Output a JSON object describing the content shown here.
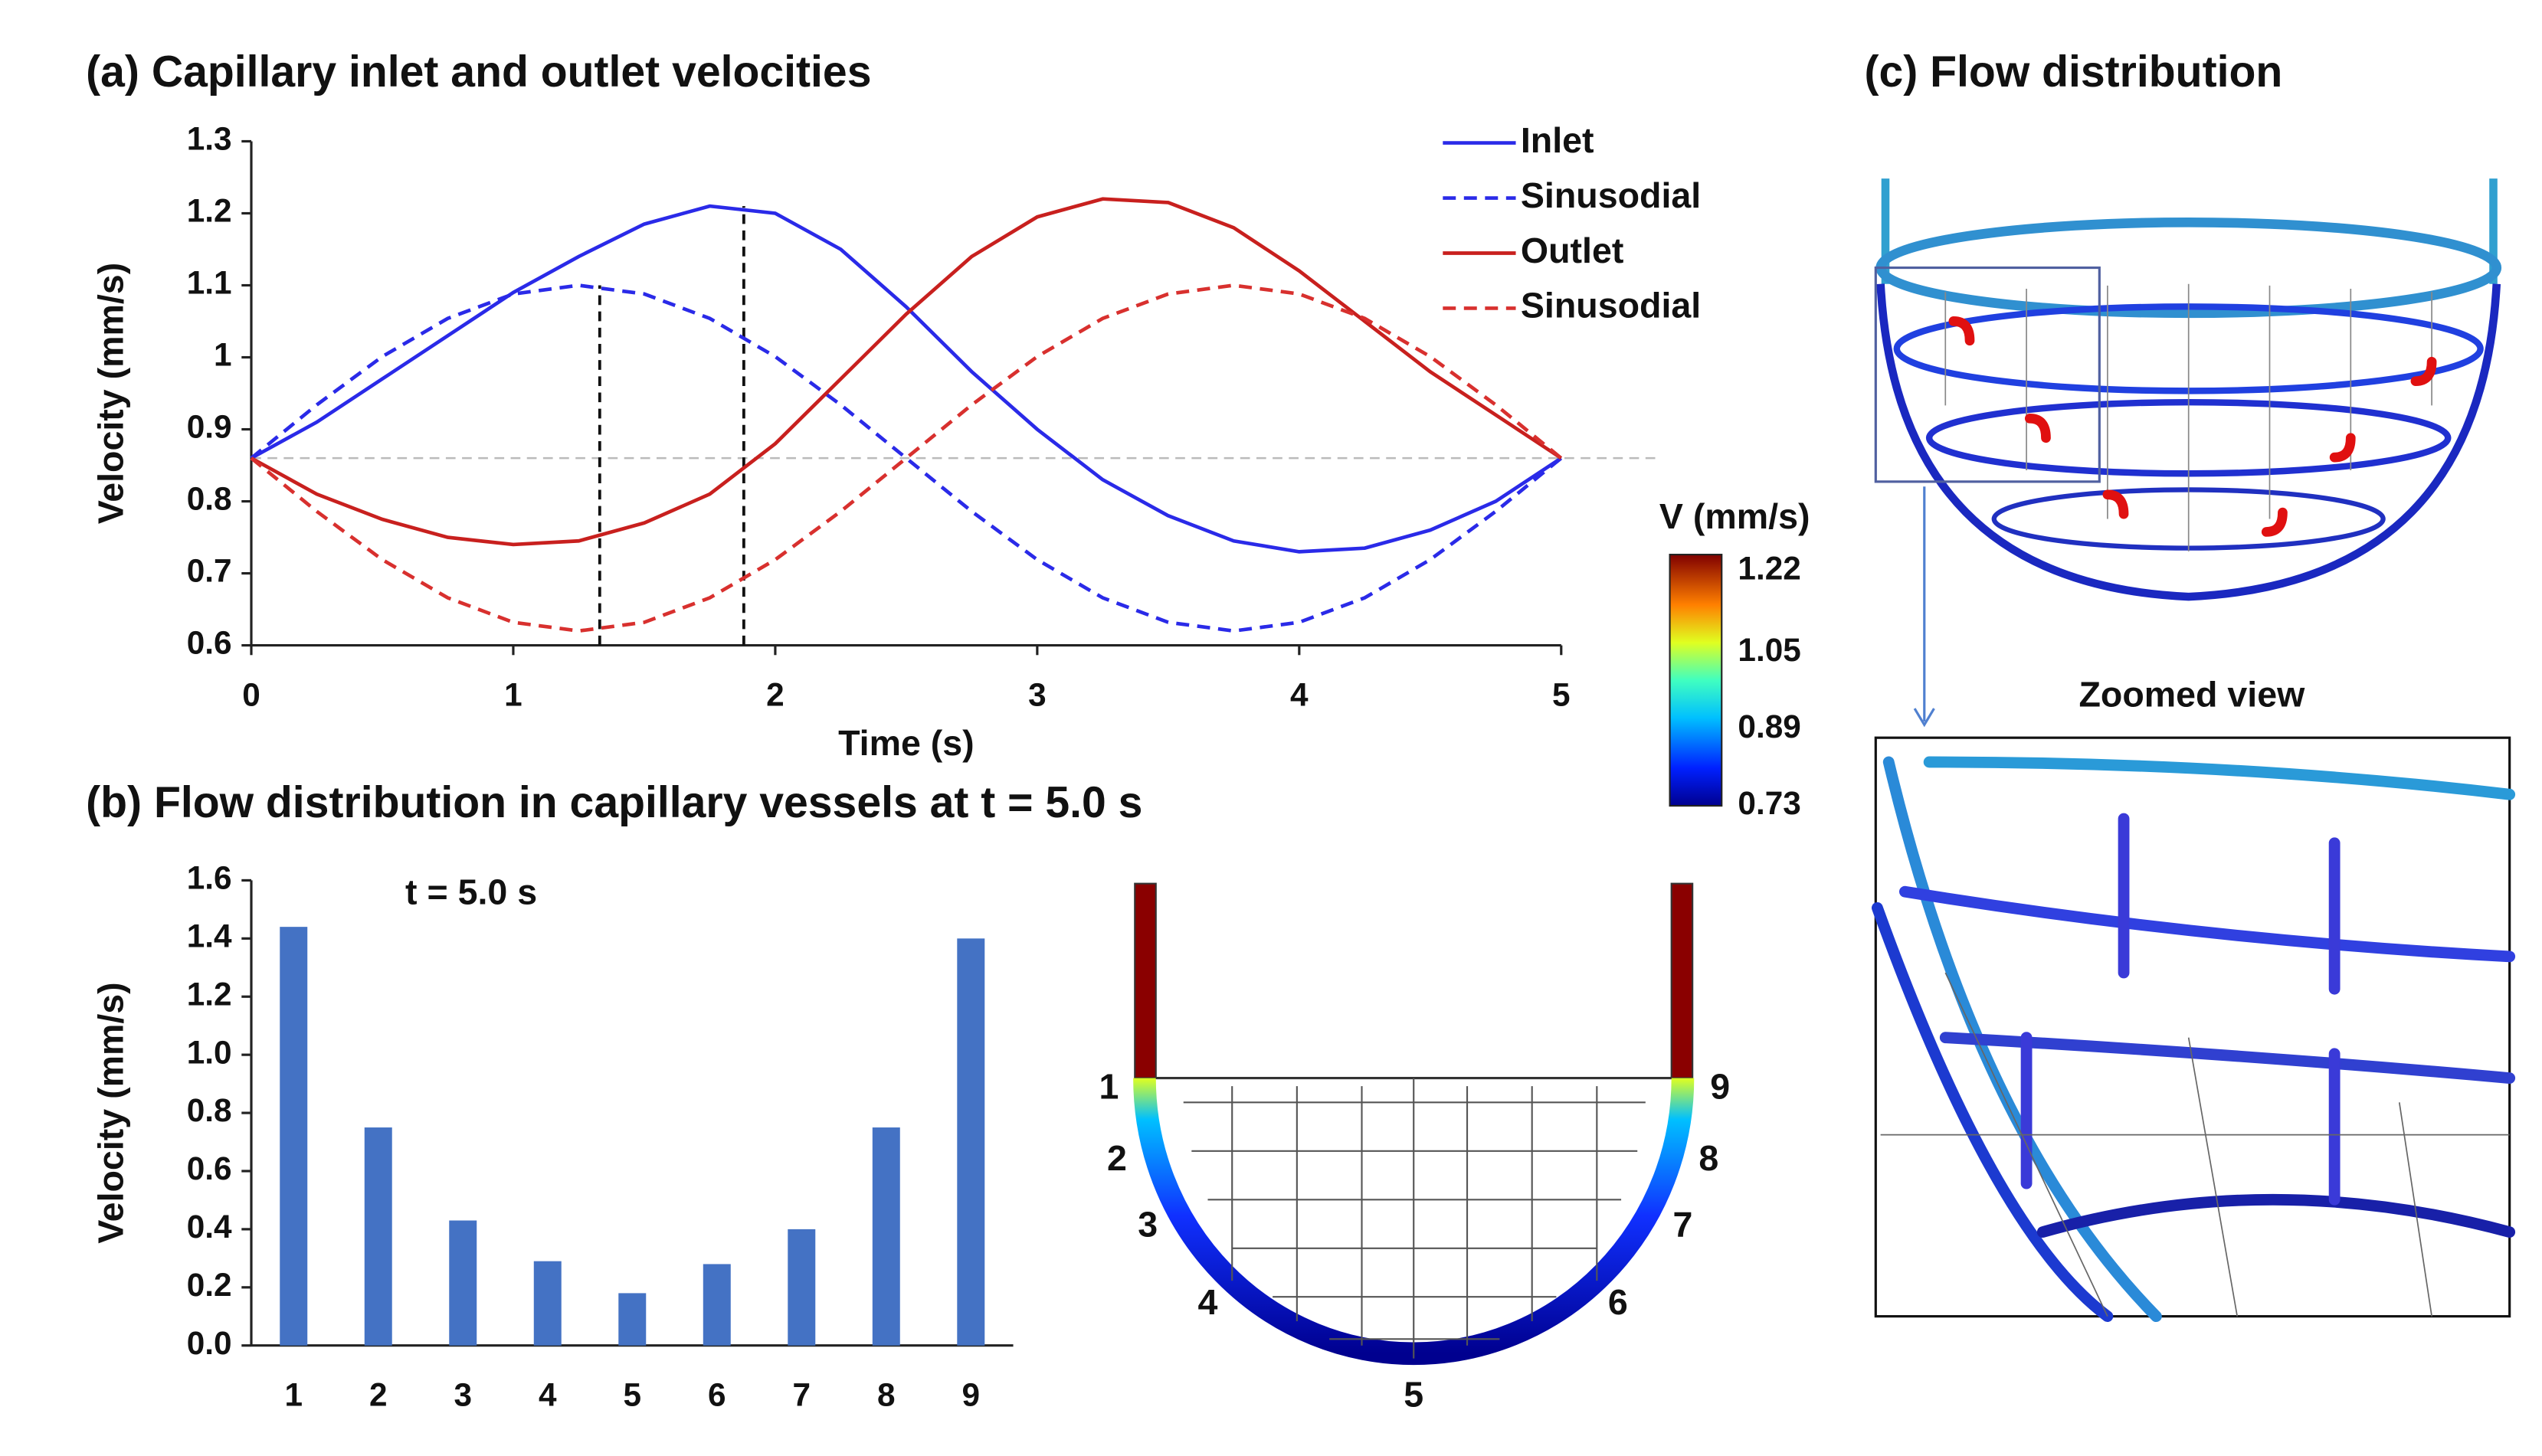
{
  "chart_data": [
    {
      "type": "line",
      "title": "(a) Capillary inlet and outlet velocities",
      "xlabel": "Time (s)",
      "ylabel": "Velocity (mm/s)",
      "x": [
        0,
        0.25,
        0.5,
        0.75,
        1,
        1.25,
        1.5,
        1.75,
        2,
        2.25,
        2.5,
        2.75,
        3,
        3.25,
        3.5,
        3.75,
        4,
        4.25,
        4.5,
        4.75,
        5
      ],
      "series": [
        {
          "name": "Inlet",
          "color": "#2a2ae8",
          "dash": false,
          "values": [
            0.86,
            0.91,
            0.97,
            1.03,
            1.09,
            1.14,
            1.185,
            1.21,
            1.2,
            1.15,
            1.07,
            0.98,
            0.9,
            0.83,
            0.78,
            0.745,
            0.73,
            0.735,
            0.76,
            0.8,
            0.86
          ]
        },
        {
          "name": "Sinusodial",
          "color": "#2a2ae8",
          "dash": true,
          "values": [
            0.86,
            0.934,
            1.001,
            1.054,
            1.088,
            1.1,
            1.088,
            1.054,
            1.001,
            0.934,
            0.86,
            0.786,
            0.719,
            0.666,
            0.632,
            0.62,
            0.632,
            0.666,
            0.719,
            0.786,
            0.86
          ]
        },
        {
          "name": "Outlet",
          "color": "#c8201e",
          "dash": false,
          "values": [
            0.86,
            0.81,
            0.775,
            0.75,
            0.74,
            0.745,
            0.77,
            0.81,
            0.88,
            0.97,
            1.06,
            1.14,
            1.195,
            1.22,
            1.215,
            1.18,
            1.12,
            1.05,
            0.98,
            0.92,
            0.86
          ]
        },
        {
          "name": "Sinusodial",
          "color": "#d8302e",
          "dash": true,
          "values": [
            0.86,
            0.786,
            0.719,
            0.666,
            0.632,
            0.62,
            0.632,
            0.666,
            0.719,
            0.786,
            0.86,
            0.934,
            1.001,
            1.054,
            1.088,
            1.1,
            1.088,
            1.054,
            1.001,
            0.934,
            0.86
          ]
        }
      ],
      "xlim": [
        0,
        5
      ],
      "xticks": [
        0,
        1,
        2,
        3,
        4,
        5
      ],
      "ylim": [
        0.6,
        1.3
      ],
      "yticks": [
        0.6,
        0.7,
        0.8,
        0.9,
        1,
        1.1,
        1.2,
        1.3
      ],
      "hline": 0.86,
      "vlines": [
        {
          "x": 1.33,
          "y": 1.1
        },
        {
          "x": 1.88,
          "y": 1.21
        }
      ],
      "legend": "upper right"
    },
    {
      "type": "bar",
      "title": "(b) Flow distribution in capillary vessels at t = 5.0 s",
      "ylabel": "Velocity (mm/s)",
      "annotation": "t = 5.0 s",
      "categories": [
        "1",
        "2",
        "3",
        "4",
        "5",
        "6",
        "7",
        "8",
        "9"
      ],
      "values": [
        1.44,
        0.75,
        0.43,
        0.29,
        0.18,
        0.28,
        0.4,
        0.75,
        1.4
      ],
      "color": "#4472c4",
      "ylim": [
        0,
        1.6
      ],
      "yticks": [
        {
          "value": 0,
          "label": "0.0"
        },
        0.2,
        0.4,
        0.6,
        0.8,
        {
          "value": 1,
          "label": "1.0"
        },
        1.2,
        1.4,
        1.6
      ]
    }
  ],
  "colorbar": {
    "title": "V (mm/s)",
    "ticks": [
      1.22,
      1.05,
      0.89,
      0.73
    ]
  },
  "diagram": {
    "labels": [
      "1",
      "2",
      "3",
      "4",
      "5",
      "6",
      "7",
      "8",
      "9"
    ]
  },
  "panel_c": {
    "title": "(c) Flow distribution",
    "zoom_label": "Zoomed view"
  }
}
